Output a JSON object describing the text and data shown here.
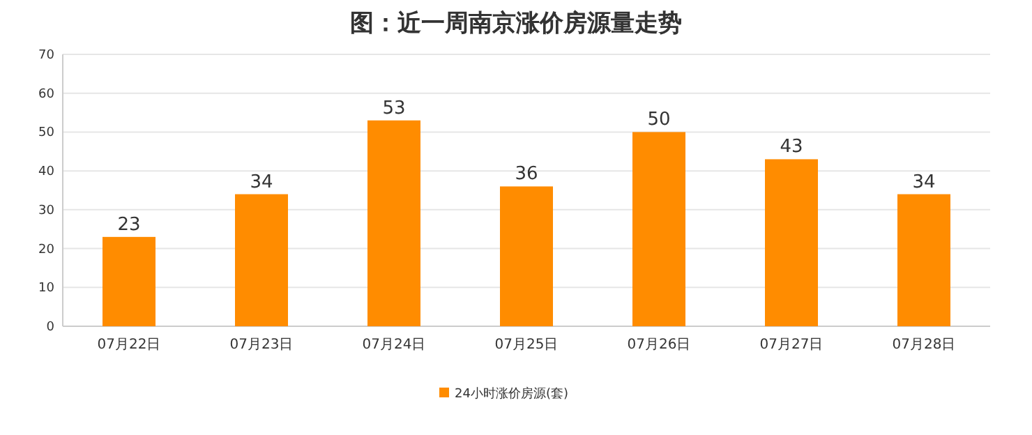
{
  "chart_data": {
    "type": "bar",
    "title": "图：近一周南京涨价房源量走势",
    "categories": [
      "07月22日",
      "07月23日",
      "07月24日",
      "07月25日",
      "07月26日",
      "07月27日",
      "07月28日"
    ],
    "series": [
      {
        "name": "24小时涨价房源(套)",
        "color": "#ff8c00",
        "values": [
          23,
          34,
          53,
          36,
          50,
          43,
          34
        ]
      }
    ],
    "ylim": [
      0,
      70
    ],
    "yticks": [
      0,
      10,
      20,
      30,
      40,
      50,
      60,
      70
    ],
    "grid": "y",
    "legend": "bottom",
    "data_labels": true
  }
}
